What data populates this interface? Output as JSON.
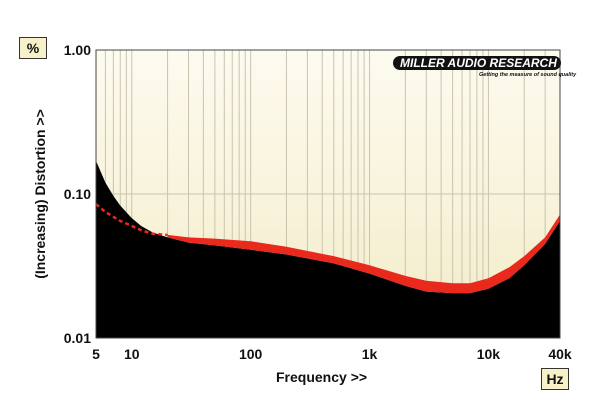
{
  "chart_data": {
    "type": "area",
    "x_unit": "Hz",
    "y_unit": "%",
    "xlabel": "Frequency >>",
    "ylabel": "(Increasing) Distortion >>",
    "x_scale": "log",
    "y_scale": "log",
    "xlim": [
      5,
      40000
    ],
    "ylim": [
      0.01,
      1.0
    ],
    "x_ticks": [
      {
        "value": 5,
        "label": "5"
      },
      {
        "value": 10,
        "label": "10"
      },
      {
        "value": 100,
        "label": "100"
      },
      {
        "value": 1000,
        "label": "1k"
      },
      {
        "value": 10000,
        "label": "10k"
      },
      {
        "value": 40000,
        "label": "40k"
      }
    ],
    "y_ticks": [
      {
        "value": 1.0,
        "label": "1.00"
      },
      {
        "value": 0.1,
        "label": "0.10"
      },
      {
        "value": 0.01,
        "label": "0.01"
      }
    ],
    "grid": true,
    "series": [
      {
        "color": "#000000",
        "x": [
          5,
          6,
          7,
          8,
          10,
          12,
          15,
          20,
          30,
          50,
          100,
          200,
          500,
          1000,
          2000,
          3000,
          5000,
          7000,
          10000,
          15000,
          20000,
          30000,
          40000
        ],
        "y": [
          0.17,
          0.12,
          0.097,
          0.083,
          0.068,
          0.06,
          0.054,
          0.05,
          0.046,
          0.044,
          0.041,
          0.038,
          0.033,
          0.028,
          0.023,
          0.021,
          0.0205,
          0.0205,
          0.022,
          0.026,
          0.032,
          0.045,
          0.065
        ]
      },
      {
        "color": "#e8291c",
        "x": [
          20,
          30,
          50,
          100,
          200,
          500,
          1000,
          2000,
          3000,
          5000,
          7000,
          10000,
          15000,
          20000,
          30000,
          40000
        ],
        "y_low": [
          0.05,
          0.046,
          0.044,
          0.041,
          0.038,
          0.033,
          0.028,
          0.023,
          0.021,
          0.0205,
          0.0205,
          0.022,
          0.026,
          0.032,
          0.045,
          0.065
        ],
        "y_high": [
          0.052,
          0.05,
          0.049,
          0.047,
          0.043,
          0.037,
          0.032,
          0.027,
          0.025,
          0.024,
          0.024,
          0.026,
          0.031,
          0.037,
          0.05,
          0.072
        ]
      },
      {
        "color": "#e8291c",
        "style": "dashed",
        "x": [
          5,
          6,
          8,
          10,
          12,
          15,
          20
        ],
        "y": [
          0.085,
          0.075,
          0.065,
          0.06,
          0.056,
          0.053,
          0.052
        ]
      }
    ],
    "colors": {
      "background": "#fbf7e3",
      "grid": "#c8c4b0",
      "frame": "#444444"
    }
  },
  "brand": {
    "name": "MILLER AUDIO RESEARCH",
    "tagline": "Getting the measure of sound quality"
  }
}
